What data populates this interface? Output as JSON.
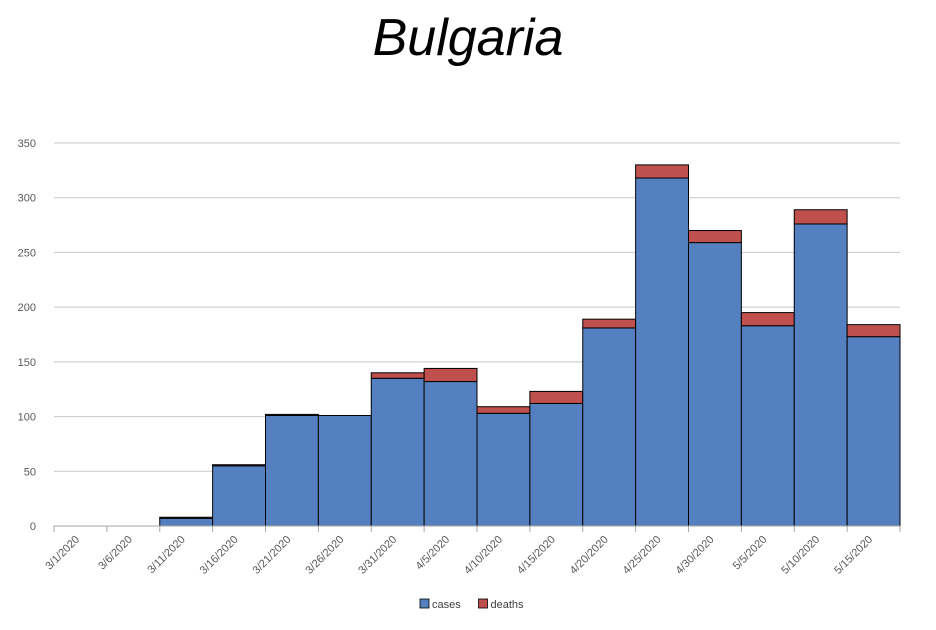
{
  "chart_data": {
    "type": "bar",
    "stacked": true,
    "title": "Bulgaria",
    "xlabel": "",
    "ylabel": "",
    "ylim": [
      0,
      350
    ],
    "yticks": [
      0,
      50,
      100,
      150,
      200,
      250,
      300,
      350
    ],
    "grid": true,
    "legend_position": "bottom",
    "categories": [
      "3/1/2020",
      "3/6/2020",
      "3/11/2020",
      "3/16/2020",
      "3/21/2020",
      "3/26/2020",
      "3/31/2020",
      "4/5/2020",
      "4/10/2020",
      "4/15/2020",
      "4/20/2020",
      "4/25/2020",
      "4/30/2020",
      "5/5/2020",
      "5/10/2020",
      "5/15/2020"
    ],
    "series": [
      {
        "name": "cases",
        "color": "#5580BF",
        "values": [
          0,
          0,
          7,
          55,
          101,
          101,
          135,
          132,
          103,
          112,
          181,
          318,
          259,
          183,
          276,
          173
        ]
      },
      {
        "name": "deaths",
        "color": "#C0504D",
        "values": [
          0,
          0,
          1,
          1,
          1,
          0,
          5,
          12,
          6,
          11,
          8,
          12,
          11,
          12,
          13,
          11
        ]
      }
    ]
  }
}
